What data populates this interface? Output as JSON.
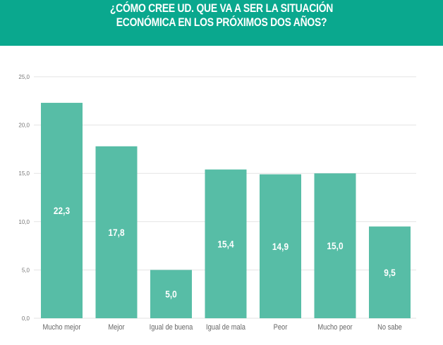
{
  "chart_data": {
    "type": "bar",
    "title": [
      "¿CÓMO CREE UD. QUE VA A SER LA SITUACIÓN",
      "ECONÓMICA EN LOS PRÓXIMOS DOS AÑOS?"
    ],
    "categories": [
      "Mucho mejor",
      "Mejor",
      "Igual de buena",
      "Igual de mala",
      "Peor",
      "Mucho peor",
      "No sabe"
    ],
    "values": [
      22.3,
      17.8,
      5.0,
      15.4,
      14.9,
      15.0,
      9.5
    ],
    "data_labels": [
      "22,3",
      "17,8",
      "5,0",
      "15,4",
      "14,9",
      "15,0",
      "9,5"
    ],
    "yticks": [
      0,
      5,
      10,
      15,
      20,
      25
    ],
    "ytick_labels": [
      "0,0",
      "5,0",
      "10,0",
      "15,0",
      "20,0",
      "25,0"
    ],
    "ylim": [
      0,
      25
    ],
    "xlabel": "",
    "ylabel": "",
    "grid": true,
    "colors": {
      "header": "#0aa88e",
      "bar": "#57bda6",
      "grid": "#e3e3e3",
      "tick_text": "#777777",
      "data_label": "#ffffff"
    }
  }
}
